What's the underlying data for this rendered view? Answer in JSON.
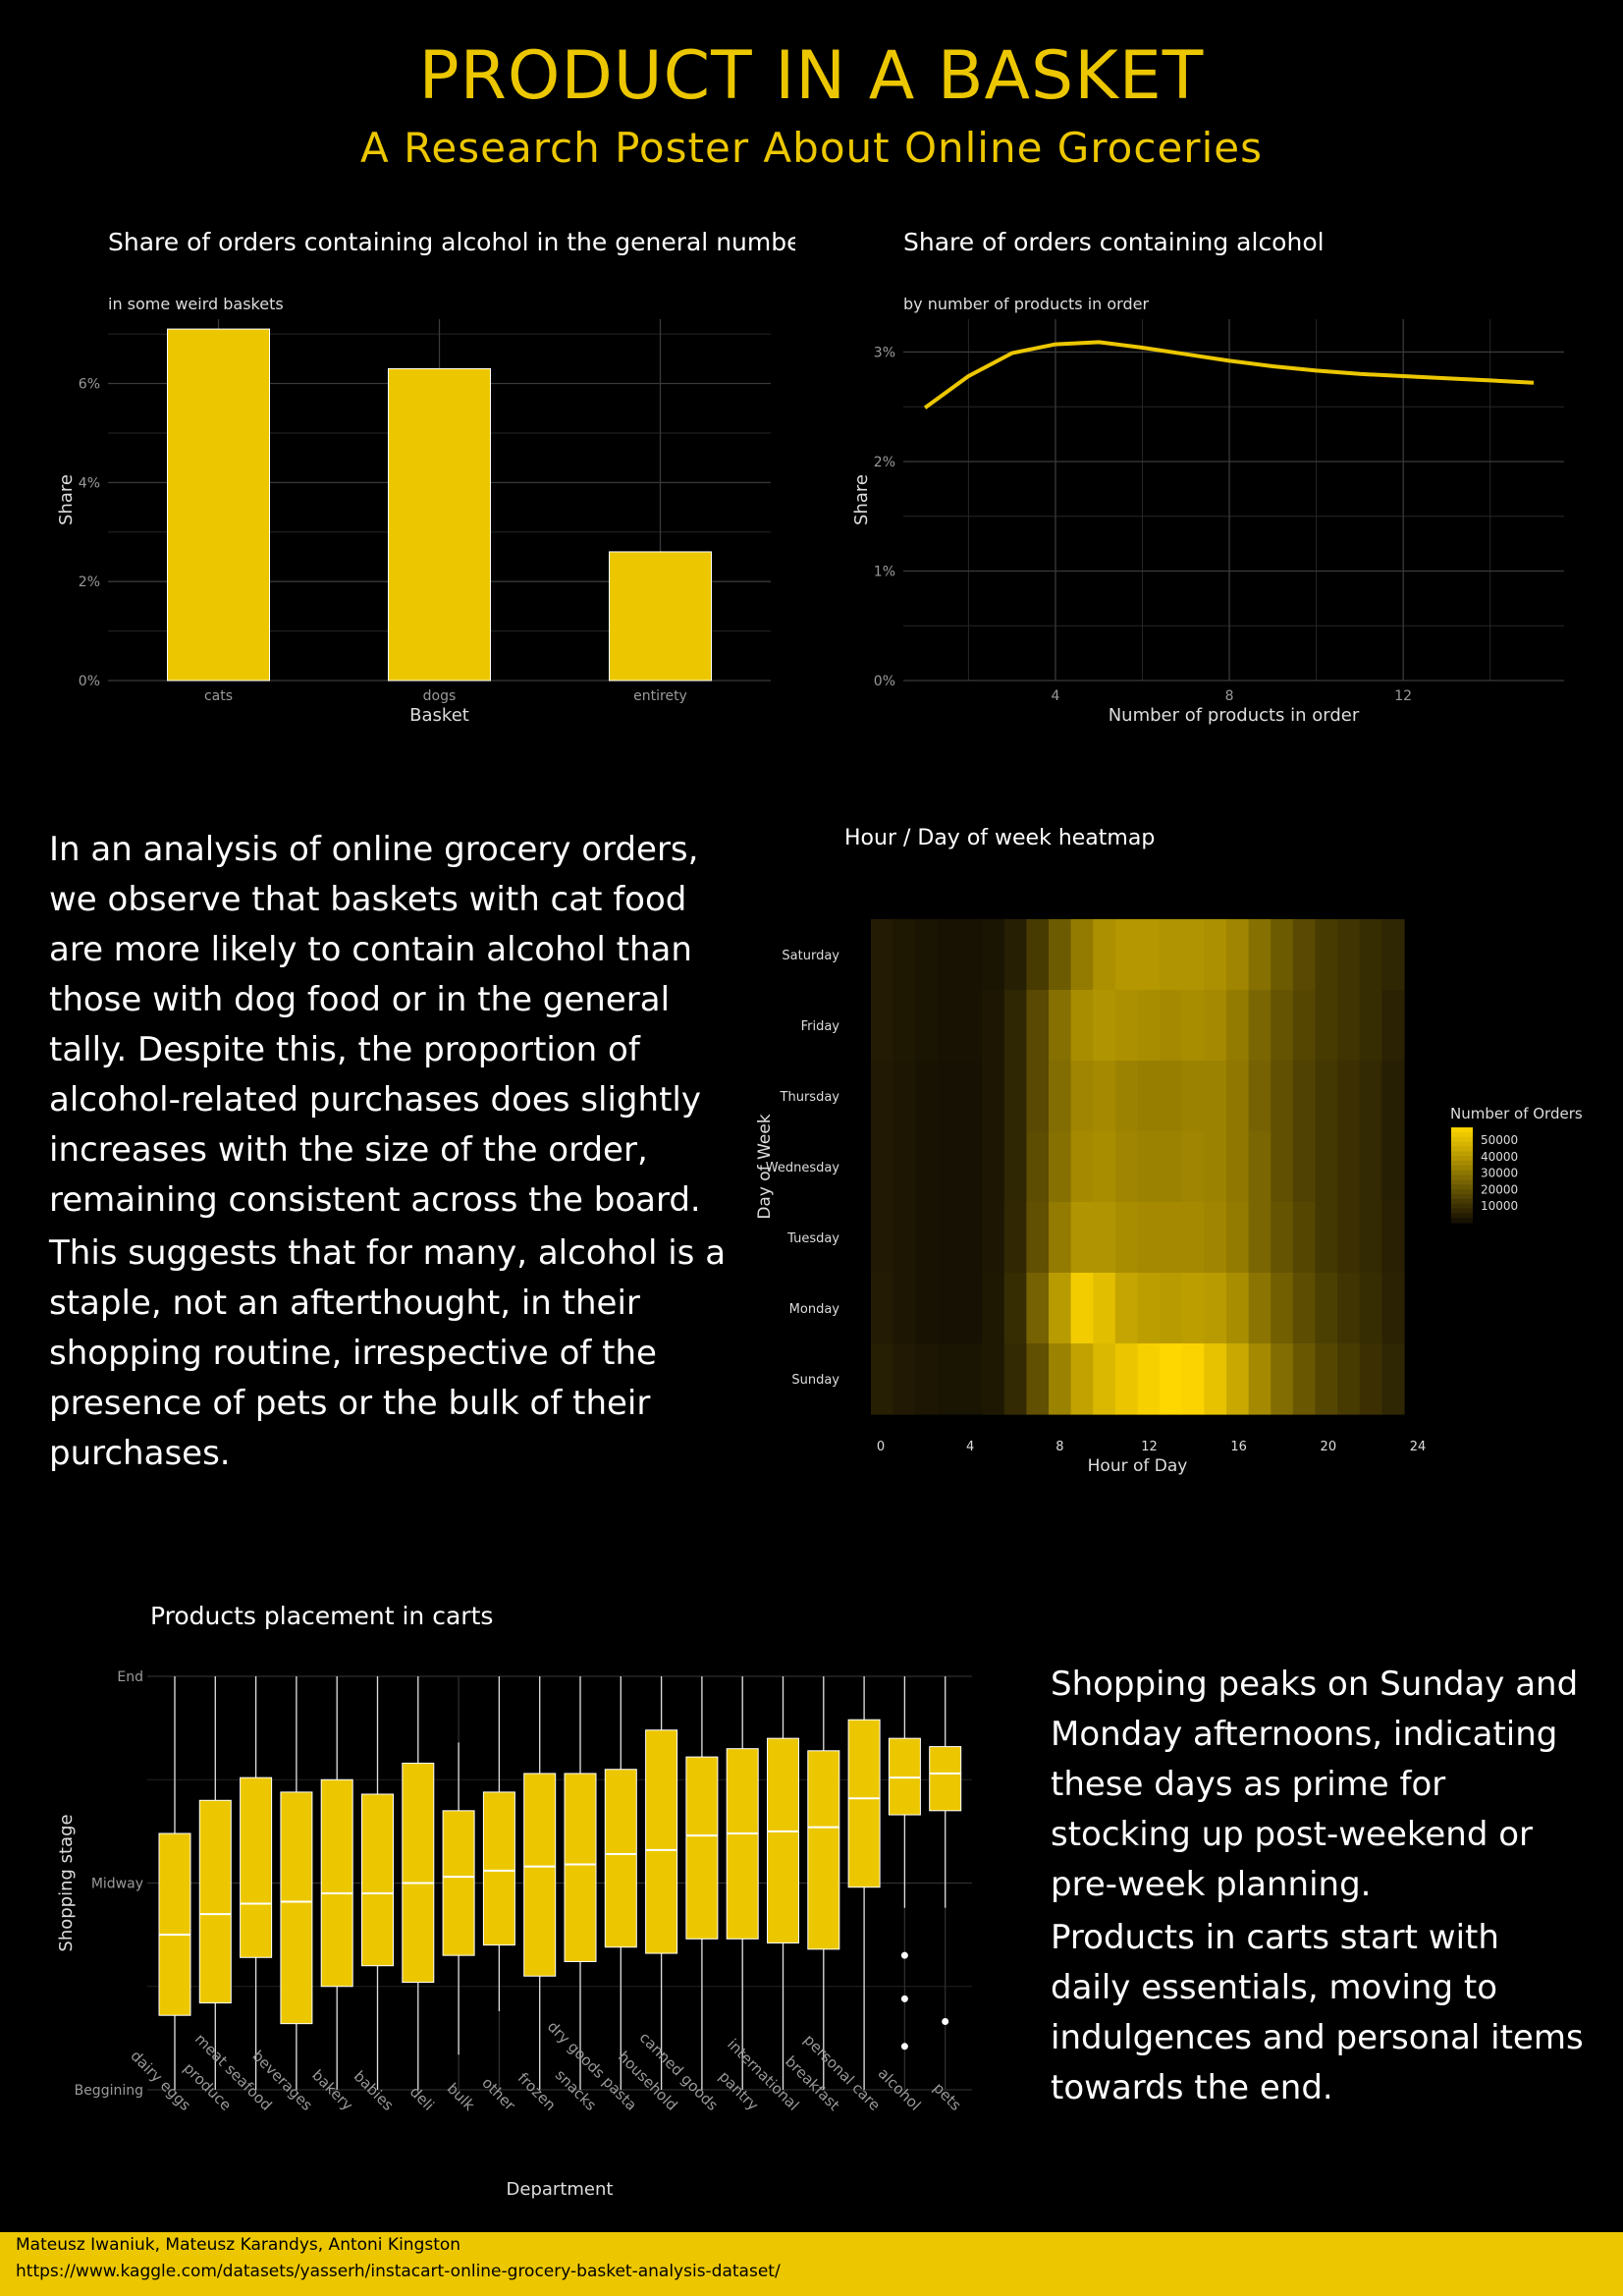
{
  "poster": {
    "title": "PRODUCT IN A BASKET",
    "subtitle": "A Research Poster About Online Groceries",
    "text1_p1": "In an analysis of online grocery orders, we observe that baskets with cat food are more likely to contain alcohol than those with dog food or in the general tally. Despite this, the proportion of alcohol-related purchases does slightly increases with the size of the order, remaining consistent across the board.",
    "text1_p2": "This suggests that for many, alcohol is a staple, not an afterthought, in their shopping routine, irrespective of the presence of pets or the bulk of their purchases.",
    "text2_p1": "Shopping peaks on Sunday and Monday afternoons, indicating these days as prime for stocking up post-weekend or pre-week planning.",
    "text2_p2": "Products in carts start with daily essentials, moving to indulgences and personal items towards the end.",
    "footer_authors": "Mateusz Iwaniuk, Mateusz Karandys, Antoni Kingston",
    "footer_url": "https://www.kaggle.com/datasets/yasserh/instacart-online-grocery-basket-analysis-dataset/"
  },
  "colors": {
    "accent": "#ecc700",
    "background": "#000000",
    "grid": "#3a3a3a",
    "axis_text": "#9a9a9a"
  },
  "chart_data": [
    {
      "id": "bar",
      "type": "bar",
      "title": "Share of orders containing alcohol in the general number",
      "subtitle": "in some weird baskets",
      "xlabel": "Basket",
      "ylabel": "Share",
      "categories": [
        "cats",
        "dogs",
        "entirety"
      ],
      "values": [
        7.1,
        6.3,
        2.6
      ],
      "ylim": [
        0,
        7.3
      ],
      "yticks": [
        0,
        2,
        4,
        6
      ],
      "ytick_labels": [
        "0%",
        "2%",
        "4%",
        "6%"
      ],
      "grid": true
    },
    {
      "id": "line",
      "type": "line",
      "title": "Share of orders containing alcohol",
      "subtitle": "by number of products in order",
      "xlabel": "Number of products in order",
      "ylabel": "Share",
      "x": [
        1,
        2,
        3,
        4,
        5,
        6,
        7,
        8,
        9,
        10,
        11,
        12,
        13,
        14,
        15
      ],
      "y": [
        2.49,
        2.78,
        2.99,
        3.07,
        3.09,
        3.04,
        2.98,
        2.92,
        2.87,
        2.83,
        2.8,
        2.78,
        2.76,
        2.74,
        2.72
      ],
      "xlim": [
        0.5,
        15.7
      ],
      "ylim": [
        0,
        3.3
      ],
      "xticks": [
        4,
        8,
        12
      ],
      "yticks": [
        0,
        1,
        2,
        3
      ],
      "ytick_labels": [
        "0%",
        "1%",
        "2%",
        "3%"
      ],
      "grid": true
    },
    {
      "id": "heat",
      "type": "heatmap",
      "title": "Hour / Day of week heatmap",
      "xlabel": "Hour of Day",
      "ylabel": "Day of Week",
      "x_ticks": [
        0,
        4,
        8,
        12,
        16,
        20,
        24
      ],
      "rows": [
        "Saturday",
        "Friday",
        "Thursday",
        "Wednesday",
        "Tuesday",
        "Monday",
        "Sunday"
      ],
      "legend_title": "Number of Orders",
      "legend_ticks": [
        50000,
        40000,
        30000,
        20000,
        10000
      ],
      "value_range": [
        0,
        57000
      ],
      "values": [
        [
          4000,
          3000,
          2000,
          1500,
          1500,
          2000,
          5000,
          13000,
          22000,
          31000,
          37000,
          39000,
          39000,
          38000,
          38000,
          37000,
          34000,
          28000,
          22000,
          17000,
          13000,
          11000,
          9000,
          7000
        ],
        [
          4000,
          3000,
          2000,
          1500,
          1500,
          2500,
          7000,
          17000,
          28000,
          36000,
          38000,
          37000,
          36000,
          35000,
          36000,
          35000,
          31000,
          25000,
          20000,
          16000,
          13000,
          11000,
          9000,
          6000
        ],
        [
          3500,
          2500,
          1500,
          1200,
          1200,
          2500,
          7000,
          17000,
          27000,
          34000,
          35000,
          33000,
          32000,
          32000,
          33000,
          33000,
          30000,
          24000,
          19000,
          15000,
          12000,
          10000,
          8000,
          5000
        ],
        [
          3500,
          2500,
          1500,
          1200,
          1200,
          2500,
          7000,
          18000,
          28000,
          35000,
          36000,
          34000,
          33000,
          33000,
          34000,
          33000,
          30000,
          25000,
          19000,
          15000,
          12000,
          10000,
          8000,
          5000
        ],
        [
          3500,
          2500,
          1500,
          1200,
          1200,
          2500,
          7500,
          19000,
          31000,
          38000,
          38000,
          36000,
          35000,
          35000,
          35000,
          34000,
          31000,
          25000,
          20000,
          16000,
          12000,
          10000,
          8000,
          5500
        ],
        [
          4000,
          2500,
          1500,
          1200,
          1200,
          3000,
          9000,
          24000,
          40000,
          54000,
          50000,
          43000,
          41000,
          40000,
          41000,
          40000,
          36000,
          29000,
          23000,
          18000,
          14000,
          11000,
          9000,
          6000
        ],
        [
          5000,
          3500,
          2500,
          2000,
          2000,
          3000,
          8000,
          19000,
          33000,
          42000,
          48000,
          52000,
          55000,
          57000,
          56000,
          51000,
          44000,
          35000,
          27000,
          21000,
          16000,
          13000,
          10000,
          7000
        ]
      ]
    },
    {
      "id": "box",
      "type": "box",
      "title": "Products placement in carts",
      "xlabel": "Department",
      "ylabel": "Shopping stage",
      "ytick_labels": [
        "End",
        "Midway",
        "Beggining"
      ],
      "ylim": [
        0,
        1
      ],
      "categories": [
        "dairy eggs",
        "produce",
        "meat seafood",
        "beverages",
        "bakery",
        "babies",
        "deli",
        "bulk",
        "other",
        "frozen",
        "snacks",
        "dry goods pasta",
        "household",
        "canned goods",
        "pantry",
        "international",
        "breakfast",
        "personal care",
        "alcohol",
        "pets"
      ],
      "boxes": [
        {
          "lo": 0.0,
          "q1": 0.18,
          "med": 0.375,
          "q3": 0.62,
          "hi": 1.0
        },
        {
          "lo": 0.0,
          "q1": 0.21,
          "med": 0.425,
          "q3": 0.7,
          "hi": 1.0
        },
        {
          "lo": 0.0,
          "q1": 0.32,
          "med": 0.45,
          "q3": 0.755,
          "hi": 1.0
        },
        {
          "lo": 0.0,
          "q1": 0.16,
          "med": 0.455,
          "q3": 0.72,
          "hi": 1.0
        },
        {
          "lo": 0.0,
          "q1": 0.25,
          "med": 0.475,
          "q3": 0.75,
          "hi": 1.0
        },
        {
          "lo": 0.0,
          "q1": 0.3,
          "med": 0.475,
          "q3": 0.715,
          "hi": 1.0
        },
        {
          "lo": 0.0,
          "q1": 0.26,
          "med": 0.5,
          "q3": 0.79,
          "hi": 1.0
        },
        {
          "lo": 0.085,
          "q1": 0.325,
          "med": 0.515,
          "q3": 0.675,
          "hi": 0.84
        },
        {
          "lo": 0.19,
          "q1": 0.35,
          "med": 0.53,
          "q3": 0.72,
          "hi": 1.0
        },
        {
          "lo": 0.0,
          "q1": 0.275,
          "med": 0.54,
          "q3": 0.765,
          "hi": 1.0
        },
        {
          "lo": 0.0,
          "q1": 0.31,
          "med": 0.545,
          "q3": 0.765,
          "hi": 1.0
        },
        {
          "lo": 0.0,
          "q1": 0.345,
          "med": 0.57,
          "q3": 0.775,
          "hi": 1.0
        },
        {
          "lo": 0.0,
          "q1": 0.33,
          "med": 0.58,
          "q3": 0.87,
          "hi": 1.0
        },
        {
          "lo": 0.0,
          "q1": 0.365,
          "med": 0.615,
          "q3": 0.805,
          "hi": 1.0
        },
        {
          "lo": 0.0,
          "q1": 0.365,
          "med": 0.62,
          "q3": 0.825,
          "hi": 1.0
        },
        {
          "lo": 0.0,
          "q1": 0.355,
          "med": 0.625,
          "q3": 0.85,
          "hi": 1.0
        },
        {
          "lo": 0.0,
          "q1": 0.34,
          "med": 0.635,
          "q3": 0.82,
          "hi": 1.0
        },
        {
          "lo": 0.0,
          "q1": 0.49,
          "med": 0.705,
          "q3": 0.895,
          "hi": 1.0
        },
        {
          "lo": 0.44,
          "q1": 0.665,
          "med": 0.755,
          "q3": 0.85,
          "hi": 1.0,
          "outliers": [
            0.325,
            0.22,
            0.105
          ]
        },
        {
          "lo": 0.44,
          "q1": 0.675,
          "med": 0.765,
          "q3": 0.83,
          "hi": 1.0,
          "outliers": [
            0.165
          ]
        }
      ]
    }
  ]
}
